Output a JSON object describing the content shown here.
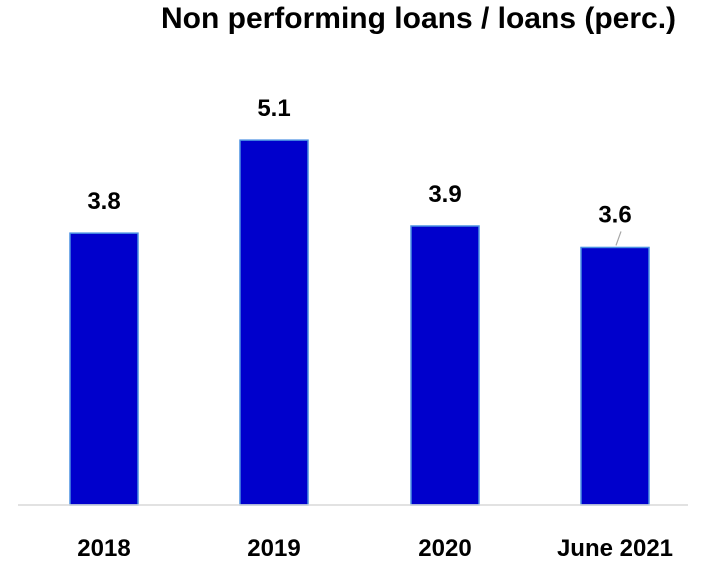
{
  "chart_data": {
    "type": "bar",
    "title": "Non performing loans / loans (perc.)",
    "categories": [
      "2018",
      "2019",
      "2020",
      "June 2021"
    ],
    "values": [
      3.8,
      5.1,
      3.9,
      3.6
    ],
    "data_labels": [
      "3.8",
      "5.1",
      "3.9",
      "3.6"
    ],
    "xlabel": "",
    "ylabel": "",
    "ylim": [
      0,
      6.5
    ],
    "grid": false,
    "legend": "none",
    "colors": {
      "bar_fill": "#0000CC",
      "bar_stroke": "#4A90E2",
      "axis": "#D9D9D9",
      "leader": "#A6A6A6"
    }
  }
}
